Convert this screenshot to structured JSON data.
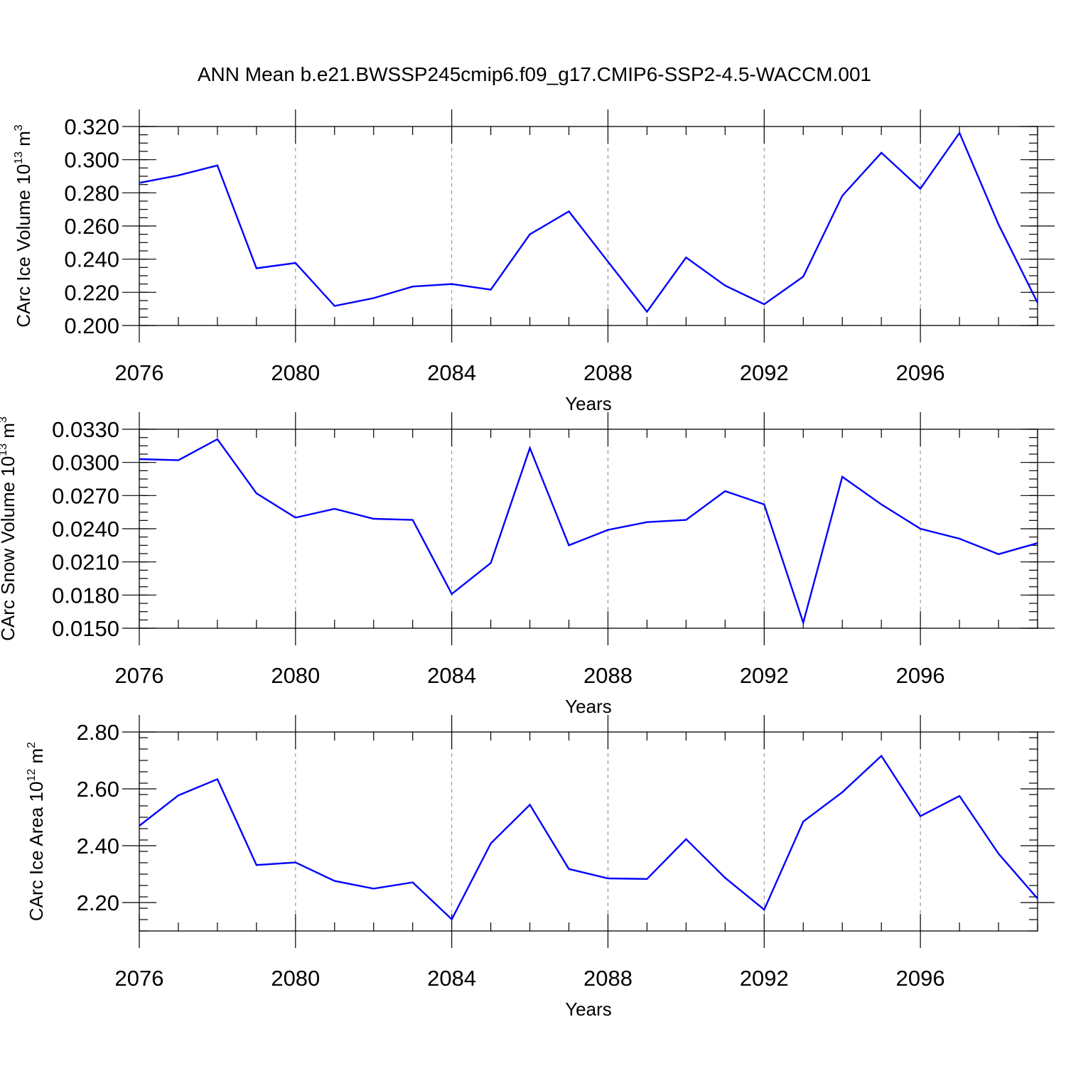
{
  "title": "ANN Mean b.e21.BWSSP245cmip6.f09_g17.CMIP6-SSP2-4.5-WACCM.001",
  "colors": {
    "line": "#0000ff",
    "axis": "#000000",
    "grid": "#888888"
  },
  "chart_data": [
    {
      "type": "line",
      "ylabel": {
        "main": "CArc Ice Volume 10",
        "exp": "13",
        "unit": " m",
        "unit_exp": "3"
      },
      "xlabel": "Years",
      "xlim": [
        2076,
        2099
      ],
      "ylim": [
        0.2,
        0.32
      ],
      "grid": "vertical-dashed",
      "x_ticks": [
        2076,
        2080,
        2084,
        2088,
        2092,
        2096
      ],
      "x_tick_labels": [
        "2076",
        "2080",
        "2084",
        "2088",
        "2092",
        "2096"
      ],
      "y_ticks": [
        0.2,
        0.22,
        0.24,
        0.26,
        0.28,
        0.3,
        0.32
      ],
      "y_tick_labels": [
        "0.200",
        "0.220",
        "0.240",
        "0.260",
        "0.280",
        "0.300",
        "0.320"
      ],
      "y_minor_step": 0.005,
      "x": [
        2076,
        2077,
        2078,
        2079,
        2080,
        2081,
        2082,
        2083,
        2084,
        2085,
        2086,
        2087,
        2088,
        2089,
        2090,
        2091,
        2092,
        2093,
        2094,
        2095,
        2096,
        2097,
        2098,
        2099
      ],
      "values": [
        0.286,
        0.2905,
        0.2965,
        0.2345,
        0.2377,
        0.2118,
        0.2165,
        0.2235,
        0.225,
        0.2216,
        0.255,
        0.2688,
        0.2385,
        0.2083,
        0.241,
        0.2241,
        0.2128,
        0.2295,
        0.2782,
        0.3042,
        0.2825,
        0.3162,
        0.261,
        0.2137
      ]
    },
    {
      "type": "line",
      "ylabel": {
        "main": "CArc Snow Volume 10",
        "exp": "13",
        "unit": " m",
        "unit_exp": "3"
      },
      "xlabel": "Years",
      "xlim": [
        2076,
        2099
      ],
      "ylim": [
        0.015,
        0.033
      ],
      "grid": "vertical-dashed",
      "x_ticks": [
        2076,
        2080,
        2084,
        2088,
        2092,
        2096
      ],
      "x_tick_labels": [
        "2076",
        "2080",
        "2084",
        "2088",
        "2092",
        "2096"
      ],
      "y_ticks": [
        0.015,
        0.018,
        0.021,
        0.024,
        0.027,
        0.03,
        0.033
      ],
      "y_tick_labels": [
        "0.0150",
        "0.0180",
        "0.0210",
        "0.0240",
        "0.0270",
        "0.0300",
        "0.0330"
      ],
      "y_minor_step": 0.00075,
      "x": [
        2076,
        2077,
        2078,
        2079,
        2080,
        2081,
        2082,
        2083,
        2084,
        2085,
        2086,
        2087,
        2088,
        2089,
        2090,
        2091,
        2092,
        2093,
        2094,
        2095,
        2096,
        2097,
        2098,
        2099
      ],
      "values": [
        0.0303,
        0.0302,
        0.0321,
        0.0272,
        0.025,
        0.0258,
        0.0249,
        0.0248,
        0.0181,
        0.0209,
        0.0313,
        0.0225,
        0.0239,
        0.0246,
        0.0248,
        0.0274,
        0.0262,
        0.0155,
        0.0287,
        0.0262,
        0.024,
        0.0231,
        0.0217,
        0.0227
      ]
    },
    {
      "type": "line",
      "ylabel": {
        "main": "CArc Ice Area 10",
        "exp": "12",
        "unit": " m",
        "unit_exp": "2"
      },
      "xlabel": "Years",
      "xlim": [
        2076,
        2099
      ],
      "ylim": [
        2.1,
        2.8
      ],
      "grid": "vertical-dashed",
      "x_ticks": [
        2076,
        2080,
        2084,
        2088,
        2092,
        2096
      ],
      "x_tick_labels": [
        "2076",
        "2080",
        "2084",
        "2088",
        "2092",
        "2096"
      ],
      "y_ticks": [
        2.2,
        2.4,
        2.6,
        2.8
      ],
      "y_tick_labels": [
        "2.20",
        "2.40",
        "2.60",
        "2.80"
      ],
      "y_minor_step": 0.04,
      "x": [
        2076,
        2077,
        2078,
        2079,
        2080,
        2081,
        2082,
        2083,
        2084,
        2085,
        2086,
        2087,
        2088,
        2089,
        2090,
        2091,
        2092,
        2093,
        2094,
        2095,
        2096,
        2097,
        2098,
        2099
      ],
      "values": [
        2.47,
        2.577,
        2.634,
        2.332,
        2.341,
        2.276,
        2.249,
        2.271,
        2.141,
        2.408,
        2.544,
        2.318,
        2.285,
        2.283,
        2.423,
        2.287,
        2.175,
        2.485,
        2.588,
        2.716,
        2.504,
        2.575,
        2.372,
        2.214
      ]
    }
  ]
}
